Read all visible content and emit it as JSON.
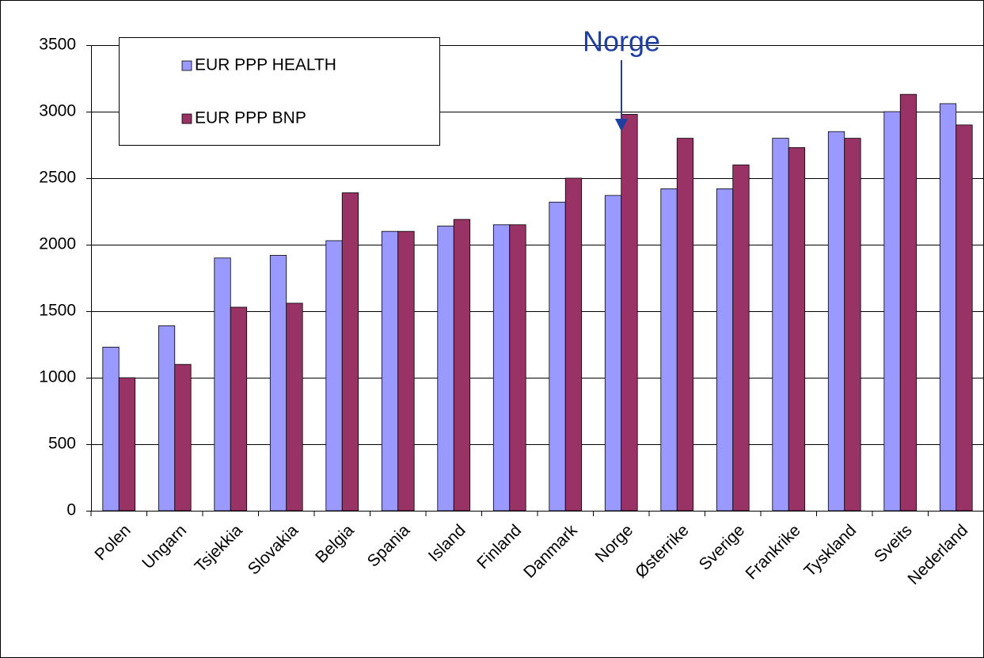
{
  "chart_data": {
    "type": "bar",
    "categories": [
      "Polen",
      "Ungarn",
      "Tsjekkia",
      "Slovakia",
      "Belgia",
      "Spania",
      "Island",
      "Finland",
      "Danmark",
      "Norge",
      "Østerrike",
      "Sverige",
      "Frankrike",
      "Tyskland",
      "Sveits",
      "Nederland"
    ],
    "series": [
      {
        "name": "EUR PPP HEALTH",
        "color": "#9999ff",
        "values": [
          1230,
          1390,
          1900,
          1920,
          2030,
          2100,
          2140,
          2150,
          2320,
          2370,
          2420,
          2420,
          2800,
          2850,
          3000,
          3060
        ]
      },
      {
        "name": "EUR PPP BNP",
        "color": "#993366",
        "values": [
          1000,
          1100,
          1530,
          1560,
          2390,
          2100,
          2190,
          2150,
          2500,
          2980,
          2800,
          2600,
          2730,
          2800,
          3130,
          2900
        ]
      }
    ],
    "annotation": "Norge",
    "ylim": [
      0,
      3500
    ],
    "yticks": [
      0,
      500,
      1000,
      1500,
      2000,
      2500,
      3000,
      3500
    ],
    "grid": true
  }
}
